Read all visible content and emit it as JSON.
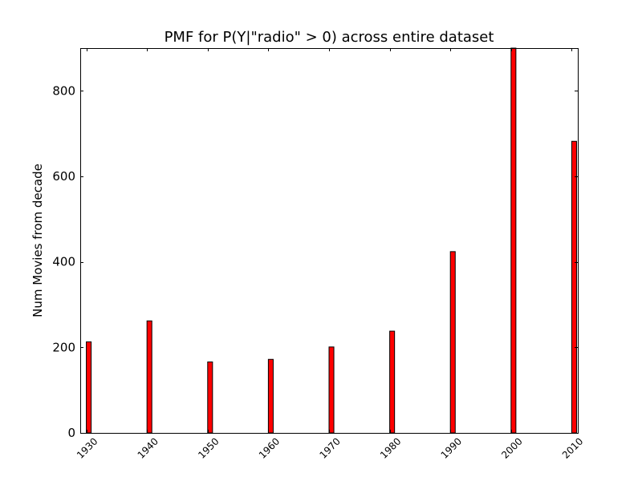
{
  "chart_data": {
    "type": "bar",
    "title": "PMF for P(Y|\"radio\" > 0) across entire dataset",
    "xlabel": "",
    "ylabel": "Num Movies from decade",
    "categories": [
      1930,
      1940,
      1950,
      1960,
      1970,
      1980,
      1990,
      2000,
      2010
    ],
    "values": [
      213,
      262,
      166,
      172,
      201,
      238,
      424,
      902,
      682
    ],
    "xlim": [
      1929,
      2011
    ],
    "ylim": [
      0,
      900
    ],
    "yticks": [
      0,
      200,
      400,
      600,
      800
    ],
    "xticks": [
      "1930",
      "1940",
      "1950",
      "1960",
      "1970",
      "1980",
      "1990",
      "2000",
      "2010"
    ],
    "bar_color": "#ff0000",
    "edge_color": "#000000",
    "grid": false
  }
}
